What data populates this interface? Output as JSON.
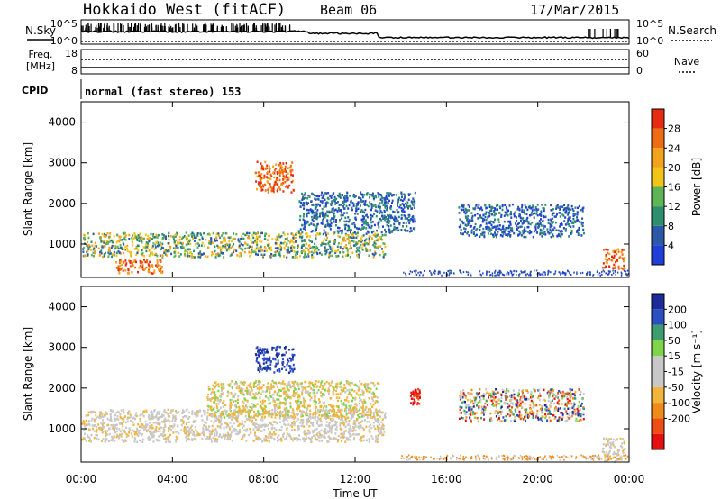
{
  "header": {
    "title": "Hokkaido West (fitACF)",
    "beam": "Beam 06",
    "date": "17/Mar/2015"
  },
  "panels": {
    "nsky_label": "N.Sky",
    "nsearch_label": "N.Search",
    "freq_label_1": "Freq.",
    "freq_label_2": "[MHz]",
    "nave_label": "Nave",
    "cpid_label": "CPID",
    "cpid_text": "normal (fast stereo) 153",
    "noise_ticks": [
      "10^5",
      "10^0"
    ],
    "freq_ticks": [
      "18",
      "8"
    ],
    "nave_ticks": [
      "60",
      "0"
    ]
  },
  "colors": {
    "power": [
      "#1f3fd8",
      "#2b59a8",
      "#2e8f6e",
      "#5db556",
      "#f2c418",
      "#f2a21b",
      "#ef6d12",
      "#e82a12"
    ],
    "velocity": [
      "#e60f0f",
      "#ef4d12",
      "#f08a18",
      "#f2b53b",
      "#c8c8c8",
      "#c8c8c8",
      "#7ed44a",
      "#3c9d6e",
      "#2a4fc0",
      "#1c2a9a"
    ]
  },
  "chart_data": [
    {
      "type": "heatmap",
      "quantity": "Power",
      "ylabel": "Slant Range [km]",
      "ylim": [
        180,
        4500
      ],
      "yticks": [
        "1000",
        "2000",
        "3000",
        "4000"
      ],
      "x": [
        "00:00",
        "04:00",
        "08:00",
        "12:00",
        "16:00",
        "20:00",
        "00:00"
      ],
      "xlim_hours": [
        0,
        24
      ],
      "colorbar": {
        "label": "Power [dB]",
        "ticks": [
          "4",
          "8",
          "12",
          "16",
          "20",
          "24",
          "28"
        ],
        "range": [
          0,
          32
        ]
      },
      "regions": [
        {
          "t": [
            0.0,
            13.3
          ],
          "r": [
            700,
            1300
          ],
          "level": "mid"
        },
        {
          "t": [
            1.5,
            3.6
          ],
          "r": [
            300,
            650
          ],
          "level": "high"
        },
        {
          "t": [
            7.6,
            9.3
          ],
          "r": [
            2300,
            3050
          ],
          "level": "high"
        },
        {
          "t": [
            9.5,
            14.6
          ],
          "r": [
            1300,
            2300
          ],
          "level": "low"
        },
        {
          "t": [
            16.5,
            22.0
          ],
          "r": [
            1200,
            2000
          ],
          "level": "low"
        },
        {
          "t": [
            22.8,
            23.8
          ],
          "r": [
            400,
            900
          ],
          "level": "high"
        }
      ]
    },
    {
      "type": "heatmap",
      "quantity": "Velocity",
      "ylabel": "Slant Range [km]",
      "ylim": [
        180,
        4500
      ],
      "yticks": [
        "1000",
        "2000",
        "3000",
        "4000"
      ],
      "x": [
        "00:00",
        "04:00",
        "08:00",
        "12:00",
        "16:00",
        "20:00",
        "00:00"
      ],
      "xlim_hours": [
        0,
        24
      ],
      "xlabel": "Time UT",
      "colorbar": {
        "label": "Velocity [m s⁻¹]",
        "ticks": [
          "200",
          "100",
          "50",
          "15",
          "-15",
          "-50",
          "-100",
          "-200"
        ],
        "range": [
          -250,
          250
        ]
      },
      "regions": [
        {
          "t": [
            0.0,
            13.3
          ],
          "r": [
            700,
            1500
          ],
          "level": "ground"
        },
        {
          "t": [
            5.5,
            13.0
          ],
          "r": [
            1300,
            2200
          ],
          "level": "away"
        },
        {
          "t": [
            7.6,
            9.3
          ],
          "r": [
            2400,
            3050
          ],
          "level": "toward"
        },
        {
          "t": [
            14.4,
            14.8
          ],
          "r": [
            1600,
            2000
          ],
          "level": "away-strong"
        },
        {
          "t": [
            16.5,
            22.0
          ],
          "r": [
            1200,
            2000
          ],
          "level": "mixed"
        },
        {
          "t": [
            22.8,
            23.8
          ],
          "r": [
            200,
            800
          ],
          "level": "ground"
        }
      ]
    }
  ]
}
